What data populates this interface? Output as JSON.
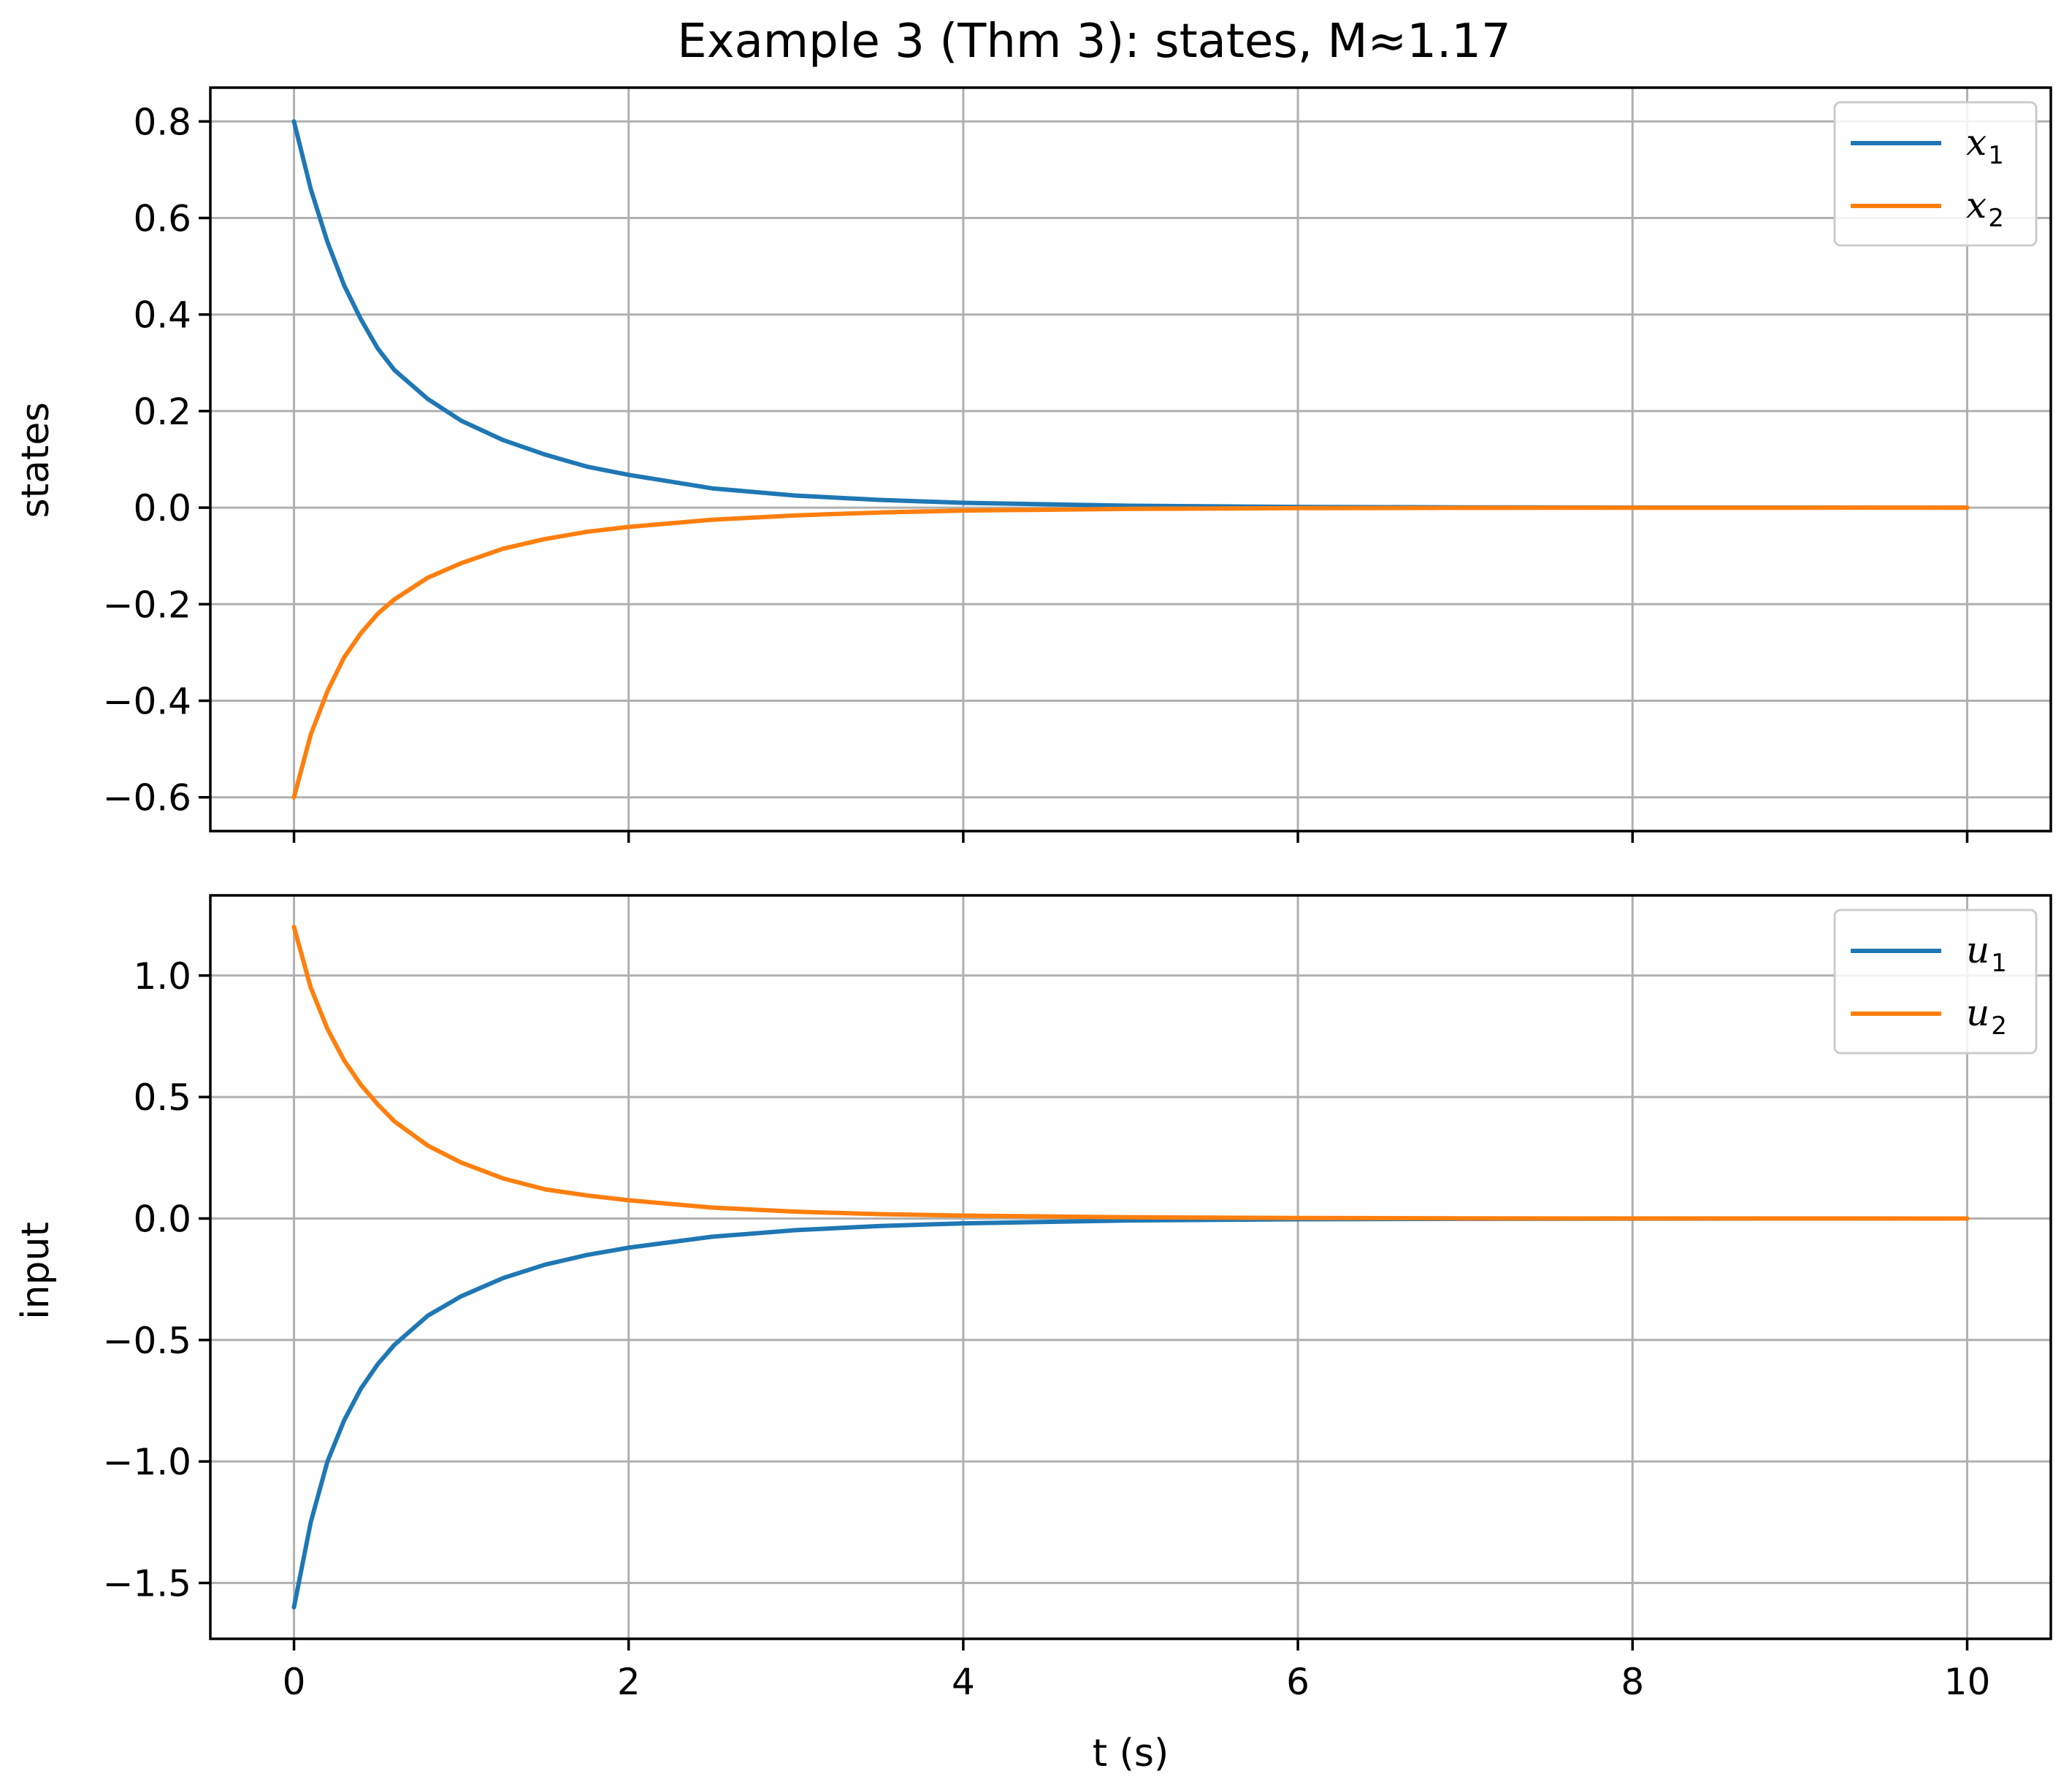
{
  "figure": {
    "title": "Example 3 (Thm 3): states, M≈1.17",
    "xlabel": "t (s)"
  },
  "chart_data": [
    {
      "type": "line",
      "panel": "top",
      "title": "Example 3 (Thm 3): states, M≈1.17",
      "xlabel": "",
      "ylabel": "states",
      "xlim": [
        -0.5,
        10.5
      ],
      "ylim": [
        -0.67,
        0.87
      ],
      "xticks": [
        0,
        2,
        4,
        6,
        8,
        10
      ],
      "xtick_labels_visible": false,
      "yticks": [
        0.8,
        0.6,
        0.4,
        0.2,
        0.0,
        -0.2,
        -0.4,
        -0.6
      ],
      "ytick_labels": [
        "0.8",
        "0.6",
        "0.4",
        "0.2",
        "0.0",
        "−0.2",
        "−0.4",
        "−0.6"
      ],
      "grid": true,
      "legend_position": "top-right",
      "x": [
        0,
        0.1,
        0.2,
        0.3,
        0.4,
        0.5,
        0.6,
        0.8,
        1.0,
        1.25,
        1.5,
        1.75,
        2.0,
        2.5,
        3.0,
        3.5,
        4.0,
        5.0,
        6.0,
        7.0,
        8.0,
        9.0,
        10.0
      ],
      "series": [
        {
          "name": "x",
          "subscript": "1",
          "color": "#1f77b4",
          "values": [
            0.8,
            0.66,
            0.55,
            0.46,
            0.39,
            0.33,
            0.285,
            0.225,
            0.18,
            0.14,
            0.11,
            0.085,
            0.068,
            0.04,
            0.025,
            0.016,
            0.01,
            0.004,
            0.0015,
            0.0006,
            0.0002,
            0.0001,
            0.0
          ]
        },
        {
          "name": "x",
          "subscript": "2",
          "color": "#ff7f0e",
          "values": [
            -0.6,
            -0.47,
            -0.38,
            -0.31,
            -0.26,
            -0.22,
            -0.19,
            -0.145,
            -0.115,
            -0.085,
            -0.065,
            -0.05,
            -0.04,
            -0.025,
            -0.016,
            -0.01,
            -0.006,
            -0.0025,
            -0.001,
            -0.0004,
            -0.0002,
            -0.0001,
            0.0
          ]
        }
      ]
    },
    {
      "type": "line",
      "panel": "bottom",
      "title": "",
      "xlabel": "t (s)",
      "ylabel": "input",
      "xlim": [
        -0.5,
        10.5
      ],
      "ylim": [
        -1.73,
        1.33
      ],
      "xticks": [
        0,
        2,
        4,
        6,
        8,
        10
      ],
      "xtick_labels": [
        "0",
        "2",
        "4",
        "6",
        "8",
        "10"
      ],
      "yticks": [
        1.0,
        0.5,
        0.0,
        -0.5,
        -1.0,
        -1.5
      ],
      "ytick_labels": [
        "1.0",
        "0.5",
        "0.0",
        "−0.5",
        "−1.0",
        "−1.5"
      ],
      "grid": true,
      "legend_position": "top-right",
      "x": [
        0,
        0.1,
        0.2,
        0.3,
        0.4,
        0.5,
        0.6,
        0.8,
        1.0,
        1.25,
        1.5,
        1.75,
        2.0,
        2.5,
        3.0,
        3.5,
        4.0,
        5.0,
        6.0,
        7.0,
        8.0,
        9.0,
        10.0
      ],
      "series": [
        {
          "name": "u",
          "subscript": "1",
          "color": "#1f77b4",
          "values": [
            -1.6,
            -1.25,
            -1.0,
            -0.83,
            -0.7,
            -0.6,
            -0.52,
            -0.4,
            -0.32,
            -0.245,
            -0.19,
            -0.15,
            -0.12,
            -0.075,
            -0.048,
            -0.031,
            -0.02,
            -0.008,
            -0.003,
            -0.0012,
            -0.0005,
            -0.0002,
            0.0
          ]
        },
        {
          "name": "u",
          "subscript": "2",
          "color": "#ff7f0e",
          "values": [
            1.2,
            0.95,
            0.78,
            0.65,
            0.55,
            0.47,
            0.4,
            0.3,
            0.23,
            0.165,
            0.12,
            0.095,
            0.075,
            0.045,
            0.028,
            0.018,
            0.012,
            0.005,
            0.002,
            0.0008,
            0.0003,
            0.0001,
            0.0
          ]
        }
      ]
    }
  ]
}
